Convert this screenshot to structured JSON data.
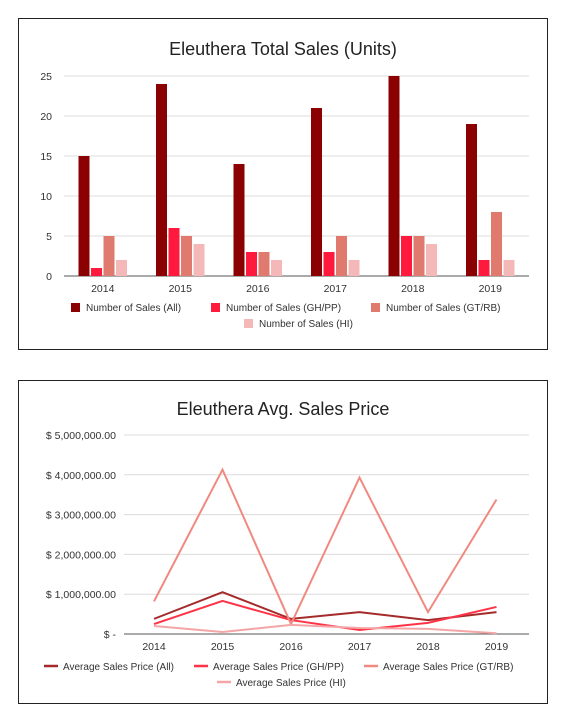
{
  "chart_data": [
    {
      "type": "bar",
      "title": "Eleuthera Total Sales (Units)",
      "categories": [
        "2014",
        "2015",
        "2016",
        "2017",
        "2018",
        "2019"
      ],
      "yticks": [
        "0",
        "5",
        "10",
        "15",
        "20",
        "25"
      ],
      "ylim": [
        0,
        25
      ],
      "grid": true,
      "legend_position": "bottom",
      "series": [
        {
          "name": "Number of Sales (All)",
          "values": [
            15,
            24,
            14,
            21,
            25,
            19
          ],
          "color": "#8b0000"
        },
        {
          "name": "Number of Sales (GH/PP)",
          "values": [
            1,
            6,
            3,
            3,
            5,
            2
          ],
          "color": "#ff1a3d"
        },
        {
          "name": "Number of Sales (GT/RB)",
          "values": [
            5,
            5,
            3,
            5,
            5,
            8
          ],
          "color": "#e07a6e"
        },
        {
          "name": "Number of Sales (HI)",
          "values": [
            2,
            4,
            2,
            2,
            4,
            2
          ],
          "color": "#f5b8b8"
        }
      ]
    },
    {
      "type": "line",
      "title": "Eleuthera Avg. Sales Price",
      "categories": [
        "2014",
        "2015",
        "2016",
        "2017",
        "2018",
        "2019"
      ],
      "yticks": [
        "$ -",
        "$ 1,000,000.00",
        "$ 2,000,000.00",
        "$ 3,000,000.00",
        "$ 4,000,000.00",
        "$ 5,000,000.00"
      ],
      "ylim": [
        0,
        5000000
      ],
      "grid": true,
      "legend_position": "bottom",
      "series": [
        {
          "name": "Average Sales Price (All)",
          "values": [
            380000,
            1050000,
            380000,
            550000,
            350000,
            550000
          ],
          "color": "#a52a2a"
        },
        {
          "name": "Average Sales Price (GH/PP)",
          "values": [
            250000,
            830000,
            350000,
            100000,
            280000,
            680000
          ],
          "color": "#ff3347"
        },
        {
          "name": "Average Sales Price (GT/RB)",
          "values": [
            820000,
            4130000,
            250000,
            3930000,
            550000,
            3380000
          ],
          "color": "#f08a80"
        },
        {
          "name": "Average Sales Price (HI)",
          "values": [
            200000,
            50000,
            230000,
            150000,
            130000,
            20000
          ],
          "color": "#f4a6a6"
        }
      ]
    }
  ]
}
